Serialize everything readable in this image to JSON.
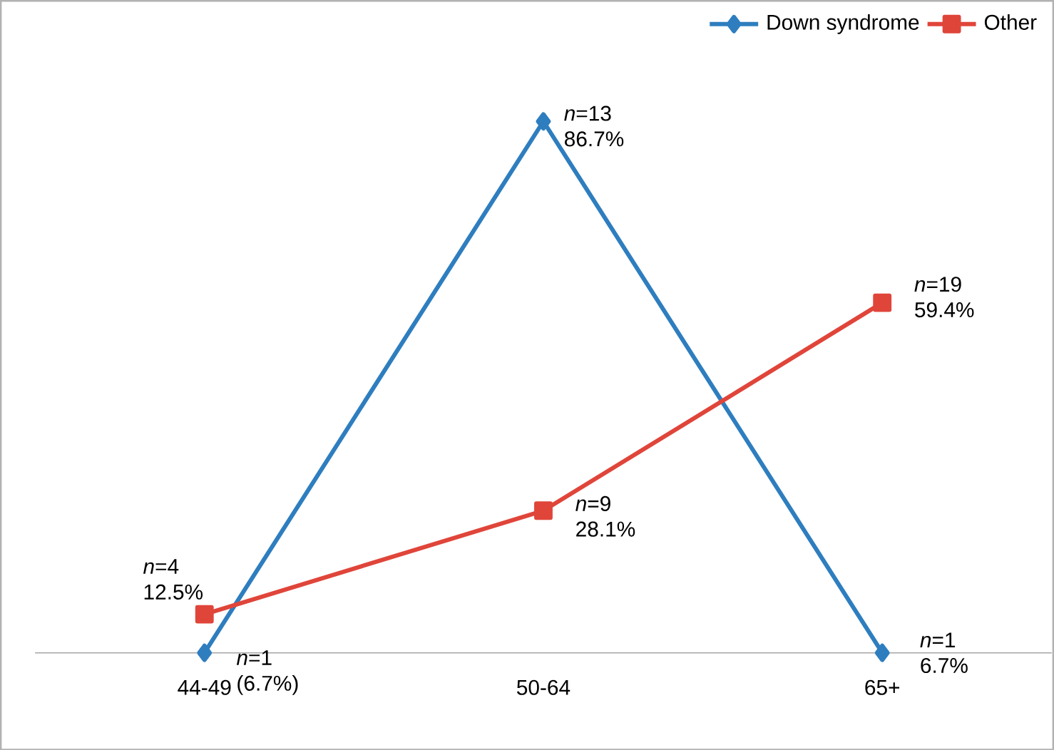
{
  "chart_data": {
    "type": "line",
    "categories": [
      "44-49",
      "50-64",
      "65+"
    ],
    "series": [
      {
        "name": "Down syndrome",
        "color": "#2e7ebf",
        "marker": "diamond",
        "values": [
          6.7,
          86.7,
          6.7
        ],
        "value_labels": [
          "*n*=1 (6.7%)",
          "*n*=13 86.7%",
          "*n*=1 6.7%"
        ]
      },
      {
        "name": "Other",
        "color": "#e0453a",
        "marker": "square",
        "values": [
          12.5,
          28.1,
          59.4
        ],
        "value_labels": [
          "*n*=4 12.5%",
          "*n*=9 28.1%",
          "*n*=19 59.4%"
        ]
      }
    ],
    "legend": "top right"
  }
}
